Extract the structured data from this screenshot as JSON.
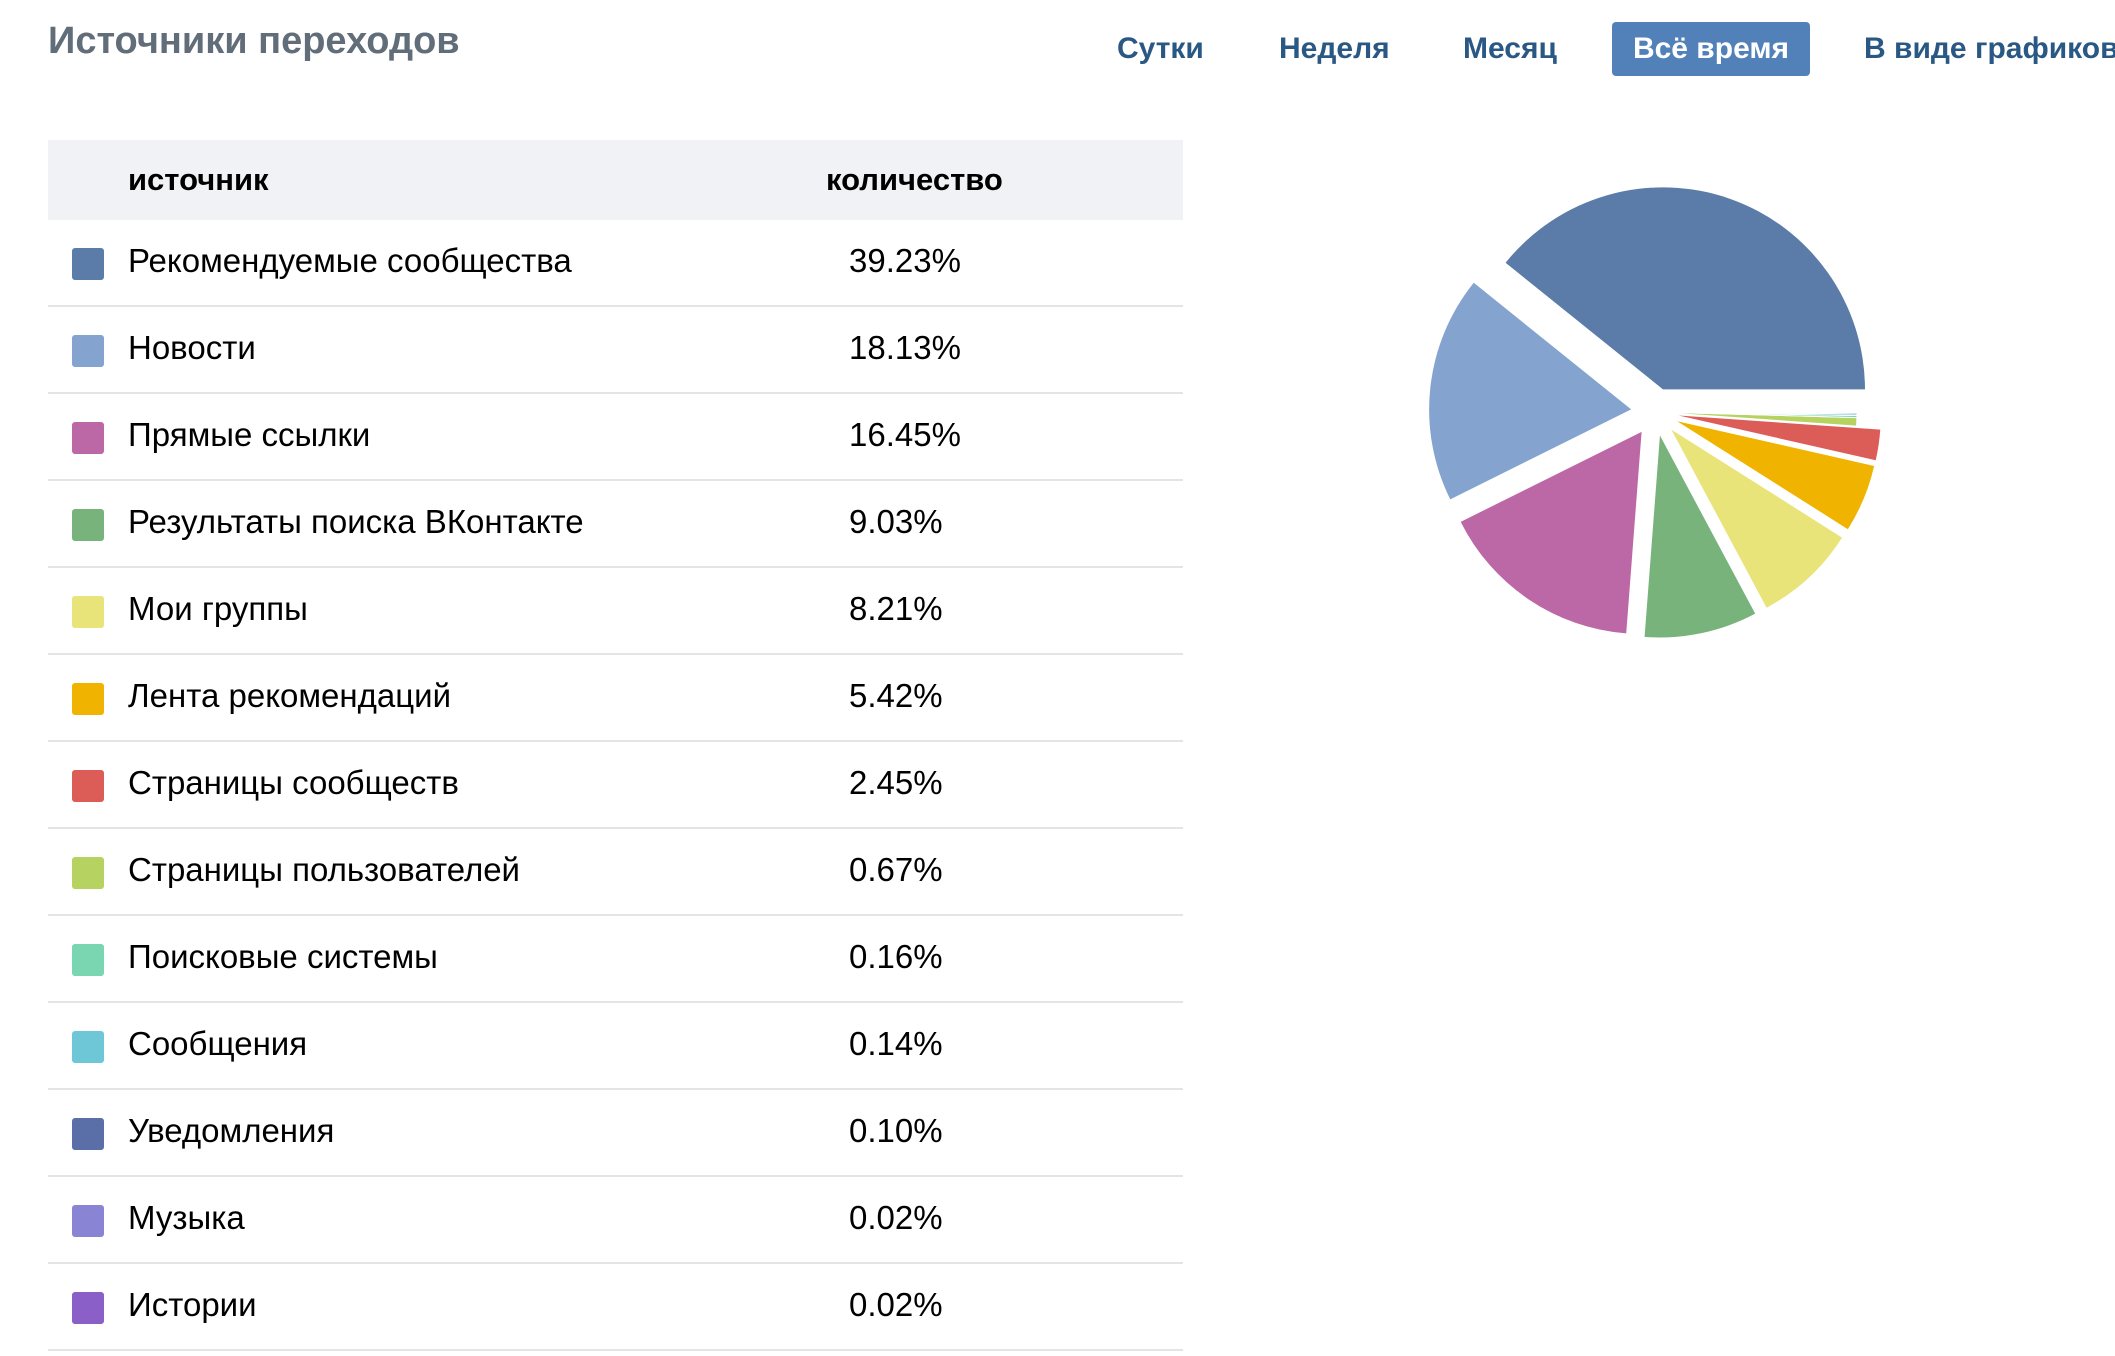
{
  "header": {
    "title": "Источники переходов",
    "tabs": [
      {
        "label": "Сутки",
        "active": false
      },
      {
        "label": "Неделя",
        "active": false
      },
      {
        "label": "Месяц",
        "active": false
      },
      {
        "label": "Всё время",
        "active": true
      },
      {
        "label": "В виде графиков",
        "active": false
      }
    ]
  },
  "table": {
    "headers": {
      "source": "источник",
      "count": "количество"
    },
    "rows": [
      {
        "name": "Рекомендуемые сообщества",
        "value": "39.23%",
        "color": "#5b7ba8"
      },
      {
        "name": "Новости",
        "value": "18.13%",
        "color": "#84a3cf"
      },
      {
        "name": "Прямые ссылки",
        "value": "16.45%",
        "color": "#bd68a6"
      },
      {
        "name": "Результаты поиска ВКонтакте",
        "value": "9.03%",
        "color": "#79b37c"
      },
      {
        "name": "Мои группы",
        "value": "8.21%",
        "color": "#e8e47a"
      },
      {
        "name": "Лента рекомендаций",
        "value": "5.42%",
        "color": "#f0b400"
      },
      {
        "name": "Страницы сообществ",
        "value": "2.45%",
        "color": "#dc5c58"
      },
      {
        "name": "Страницы пользователей",
        "value": "0.67%",
        "color": "#b6d362"
      },
      {
        "name": "Поисковые системы",
        "value": "0.16%",
        "color": "#79d6b0"
      },
      {
        "name": "Сообщения",
        "value": "0.14%",
        "color": "#6ec7d6"
      },
      {
        "name": "Уведомления",
        "value": "0.10%",
        "color": "#5a6ea8"
      },
      {
        "name": "Музыка",
        "value": "0.02%",
        "color": "#8a84d4"
      },
      {
        "name": "Истории",
        "value": "0.02%",
        "color": "#8a60c8"
      }
    ]
  },
  "chart_data": {
    "type": "pie",
    "categories": [
      "Рекомендуемые сообщества",
      "Новости",
      "Прямые ссылки",
      "Результаты поиска ВКонтакте",
      "Мои группы",
      "Лента рекомендаций",
      "Страницы сообществ",
      "Страницы пользователей",
      "Поисковые системы",
      "Сообщения",
      "Уведомления",
      "Музыка",
      "Истории"
    ],
    "values": [
      39.23,
      18.13,
      16.45,
      9.03,
      8.21,
      5.42,
      2.45,
      0.67,
      0.16,
      0.14,
      0.1,
      0.02,
      0.02
    ],
    "colors": [
      "#5b7ba8",
      "#84a3cf",
      "#bd68a6",
      "#79b37c",
      "#e8e47a",
      "#f0b400",
      "#dc5c58",
      "#b6d362",
      "#79d6b0",
      "#6ec7d6",
      "#5a6ea8",
      "#8a84d4",
      "#8a60c8"
    ],
    "unlisted_slice_colors": [
      "#a0a3d8",
      "#4fae9c",
      "#5db86a",
      "#9aa55e",
      "#a44d55",
      "#a88f52",
      "#d4cc90",
      "#94c894"
    ],
    "unit": "%"
  }
}
